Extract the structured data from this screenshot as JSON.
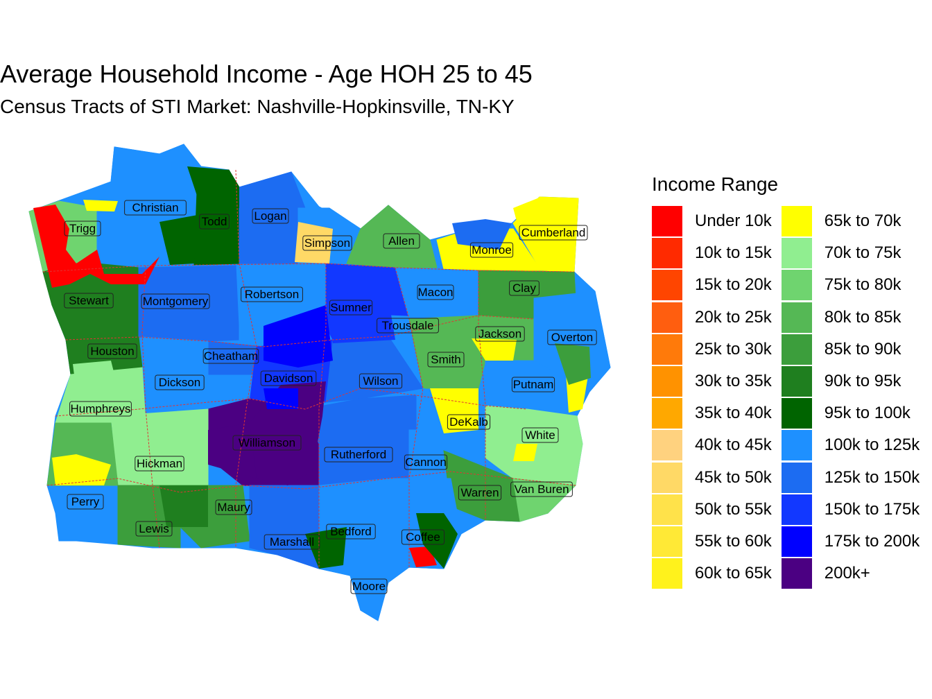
{
  "title": "Average Household Income - Age HOH 25 to 45",
  "subtitle": "Census Tracts of STI Market: Nashville-Hopkinsville, TN-KY",
  "legend": {
    "title": "Income Range",
    "items": [
      {
        "label": "Under 10k",
        "color": "#FF0000"
      },
      {
        "label": "10k to 15k",
        "color": "#FF2A00"
      },
      {
        "label": "15k to 20k",
        "color": "#FF4500"
      },
      {
        "label": "20k to 25k",
        "color": "#FF5E0F"
      },
      {
        "label": "25k to 30k",
        "color": "#FF7A0A"
      },
      {
        "label": "30k to 35k",
        "color": "#FF9200"
      },
      {
        "label": "35k to 40k",
        "color": "#FFA800"
      },
      {
        "label": "40k to 45k",
        "color": "#FFD27F"
      },
      {
        "label": "45k to 50k",
        "color": "#FFD966"
      },
      {
        "label": "50k to 55k",
        "color": "#FFE24A"
      },
      {
        "label": "55k to 60k",
        "color": "#FFE936"
      },
      {
        "label": "60k to 65k",
        "color": "#FFF21C"
      },
      {
        "label": "65k to 70k",
        "color": "#FFFF00"
      },
      {
        "label": "70k to 75k",
        "color": "#90EE90"
      },
      {
        "label": "75k to 80k",
        "color": "#6FD46F"
      },
      {
        "label": "80k to 85k",
        "color": "#55B855"
      },
      {
        "label": "85k to 90k",
        "color": "#3C9E3C"
      },
      {
        "label": "90k to 95k",
        "color": "#1F7F1F"
      },
      {
        "label": "95k to 100k",
        "color": "#006400"
      },
      {
        "label": "100k to 125k",
        "color": "#1E90FF"
      },
      {
        "label": "125k to 150k",
        "color": "#1C6CF2"
      },
      {
        "label": "150k to 175k",
        "color": "#1238FF"
      },
      {
        "label": "175k to 200k",
        "color": "#0000FF"
      },
      {
        "label": "200k+",
        "color": "#4B0082"
      }
    ]
  },
  "counties": [
    {
      "name": "Trigg",
      "fill": "#6FD46F"
    },
    {
      "name": "Christian",
      "fill": "#1E90FF"
    },
    {
      "name": "Todd",
      "fill": "#006400"
    },
    {
      "name": "Logan",
      "fill": "#1C6CF2"
    },
    {
      "name": "Simpson",
      "fill": "#1E90FF"
    },
    {
      "name": "Allen",
      "fill": "#55B855"
    },
    {
      "name": "Monroe",
      "fill": "#FFFF00"
    },
    {
      "name": "Cumberland",
      "fill": "#FFFF00"
    },
    {
      "name": "Stewart",
      "fill": "#1F7F1F"
    },
    {
      "name": "Montgomery",
      "fill": "#1C6CF2"
    },
    {
      "name": "Robertson",
      "fill": "#1E90FF"
    },
    {
      "name": "Sumner",
      "fill": "#1238FF"
    },
    {
      "name": "Macon",
      "fill": "#1E90FF"
    },
    {
      "name": "Clay",
      "fill": "#3C9E3C"
    },
    {
      "name": "Trousdale",
      "fill": "#1E90FF"
    },
    {
      "name": "Jackson",
      "fill": "#55B855"
    },
    {
      "name": "Overton",
      "fill": "#1E90FF"
    },
    {
      "name": "Houston",
      "fill": "#1F7F1F"
    },
    {
      "name": "Cheatham",
      "fill": "#1C6CF2"
    },
    {
      "name": "Davidson",
      "fill": "#1238FF"
    },
    {
      "name": "Wilson",
      "fill": "#1C6CF2"
    },
    {
      "name": "Smith",
      "fill": "#55B855"
    },
    {
      "name": "Putnam",
      "fill": "#1E90FF"
    },
    {
      "name": "Dickson",
      "fill": "#1E90FF"
    },
    {
      "name": "Humphreys",
      "fill": "#90EE90"
    },
    {
      "name": "DeKalb",
      "fill": "#1E90FF"
    },
    {
      "name": "White",
      "fill": "#90EE90"
    },
    {
      "name": "Williamson",
      "fill": "#4B0082"
    },
    {
      "name": "Rutherford",
      "fill": "#1C6CF2"
    },
    {
      "name": "Cannon",
      "fill": "#1E90FF"
    },
    {
      "name": "Hickman",
      "fill": "#90EE90"
    },
    {
      "name": "Perry",
      "fill": "#55B855"
    },
    {
      "name": "Warren",
      "fill": "#3C9E3C"
    },
    {
      "name": "Van Buren",
      "fill": "#6FD46F"
    },
    {
      "name": "Maury",
      "fill": "#3C9E3C"
    },
    {
      "name": "Lewis",
      "fill": "#3C9E3C"
    },
    {
      "name": "Marshall",
      "fill": "#1C6CF2"
    },
    {
      "name": "Bedford",
      "fill": "#1E90FF"
    },
    {
      "name": "Coffee",
      "fill": "#1E90FF"
    },
    {
      "name": "Moore",
      "fill": "#1E90FF"
    }
  ]
}
